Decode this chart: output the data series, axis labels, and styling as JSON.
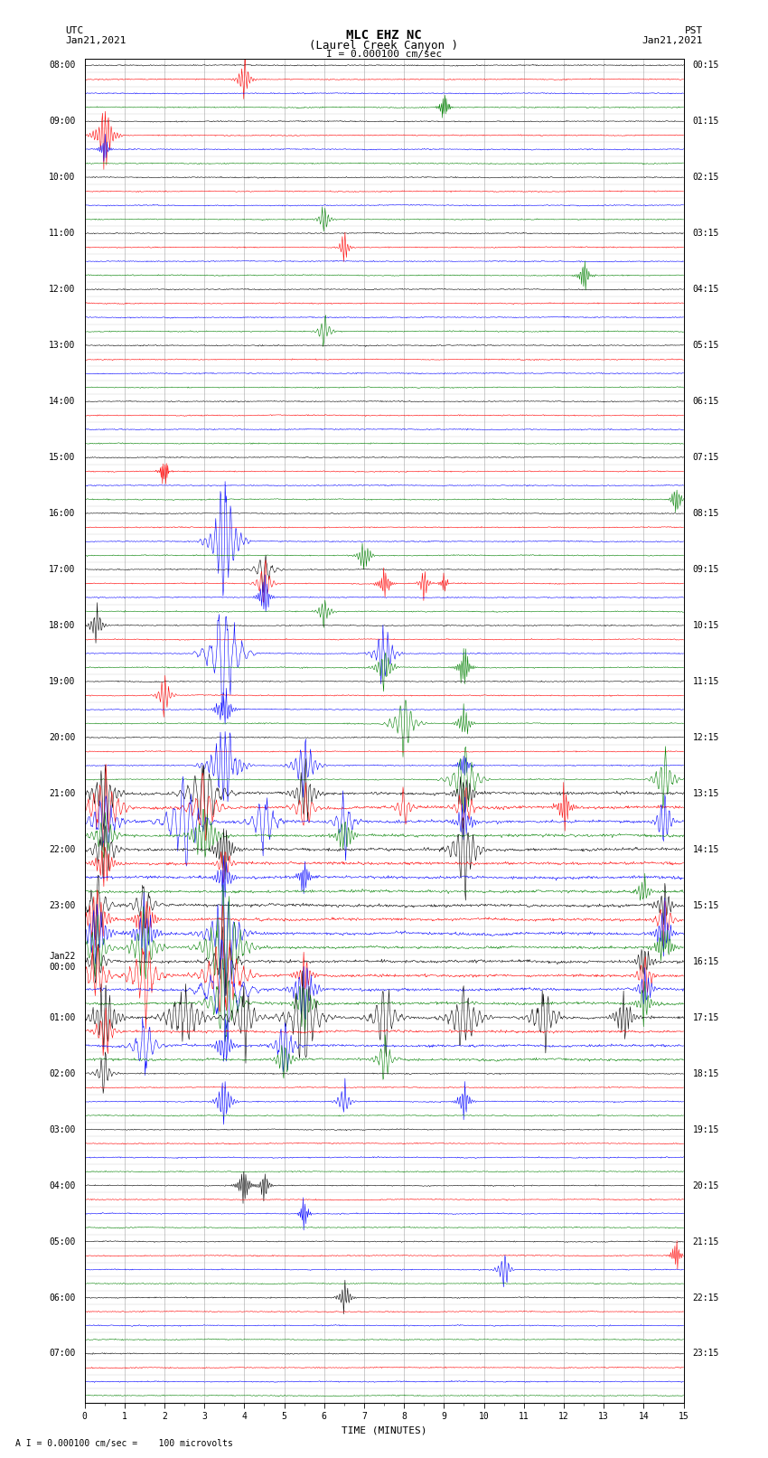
{
  "title_line1": "MLC EHZ NC",
  "title_line2": "(Laurel Creek Canyon )",
  "title_line3": "I = 0.000100 cm/sec",
  "utc_label": "UTC",
  "utc_date": "Jan21,2021",
  "pst_label": "PST",
  "pst_date": "Jan21,2021",
  "xlabel": "TIME (MINUTES)",
  "footnote": "A I = 0.000100 cm/sec =    100 microvolts",
  "x_min": 0,
  "x_max": 15,
  "num_hours": 24,
  "channels_per_hour": 4,
  "row_colors": [
    "black",
    "red",
    "blue",
    "green"
  ],
  "left_times_utc": [
    "08:00",
    "09:00",
    "10:00",
    "11:00",
    "12:00",
    "13:00",
    "14:00",
    "15:00",
    "16:00",
    "17:00",
    "18:00",
    "19:00",
    "20:00",
    "21:00",
    "22:00",
    "23:00",
    "Jan22\n00:00",
    "01:00",
    "02:00",
    "03:00",
    "04:00",
    "05:00",
    "06:00",
    "07:00"
  ],
  "right_times_pst": [
    "00:15",
    "01:15",
    "02:15",
    "03:15",
    "04:15",
    "05:15",
    "06:15",
    "07:15",
    "08:15",
    "09:15",
    "10:15",
    "11:15",
    "12:15",
    "13:15",
    "14:15",
    "15:15",
    "16:15",
    "17:15",
    "18:15",
    "19:15",
    "20:15",
    "21:15",
    "22:15",
    "23:15"
  ],
  "background_color": "white",
  "grid_color": "#999999",
  "noise_amplitude": 0.3,
  "noise_seed": 42
}
